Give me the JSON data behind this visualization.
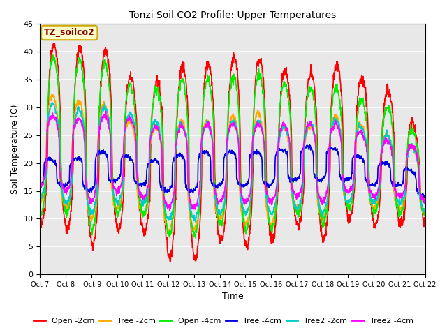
{
  "title": "Tonzi Soil CO2 Profile: Upper Temperatures",
  "xlabel": "Time",
  "ylabel": "Soil Temperature (C)",
  "ylim": [
    0,
    45
  ],
  "xlim": [
    0,
    15
  ],
  "fig_bg_color": "#ffffff",
  "plot_bg_color": "#e8e8e8",
  "annotation_text": "TZ_soilco2",
  "annotation_bg": "#ffffcc",
  "annotation_border": "#ccaa00",
  "xtick_labels": [
    "Oct 7",
    "Oct 8",
    " Oct 9",
    "Oct 10",
    "Oct 11",
    "Oct 12",
    "Oct 13",
    "Oct 14",
    "Oct 15",
    "Oct 16",
    "Oct 17",
    "Oct 18",
    "Oct 19",
    "Oct 20",
    "Oct 21",
    "Oct 22"
  ],
  "series": [
    {
      "label": "Open -2cm",
      "color": "#ff0000",
      "lw": 1.2
    },
    {
      "label": "Tree -2cm",
      "color": "#ffaa00",
      "lw": 1.2
    },
    {
      "label": "Open -4cm",
      "color": "#00ee00",
      "lw": 1.2
    },
    {
      "label": "Tree -4cm",
      "color": "#0000dd",
      "lw": 1.2
    },
    {
      "label": "Tree2 -2cm",
      "color": "#00cccc",
      "lw": 1.2
    },
    {
      "label": "Tree2 -4cm",
      "color": "#ff00ff",
      "lw": 1.2
    }
  ]
}
